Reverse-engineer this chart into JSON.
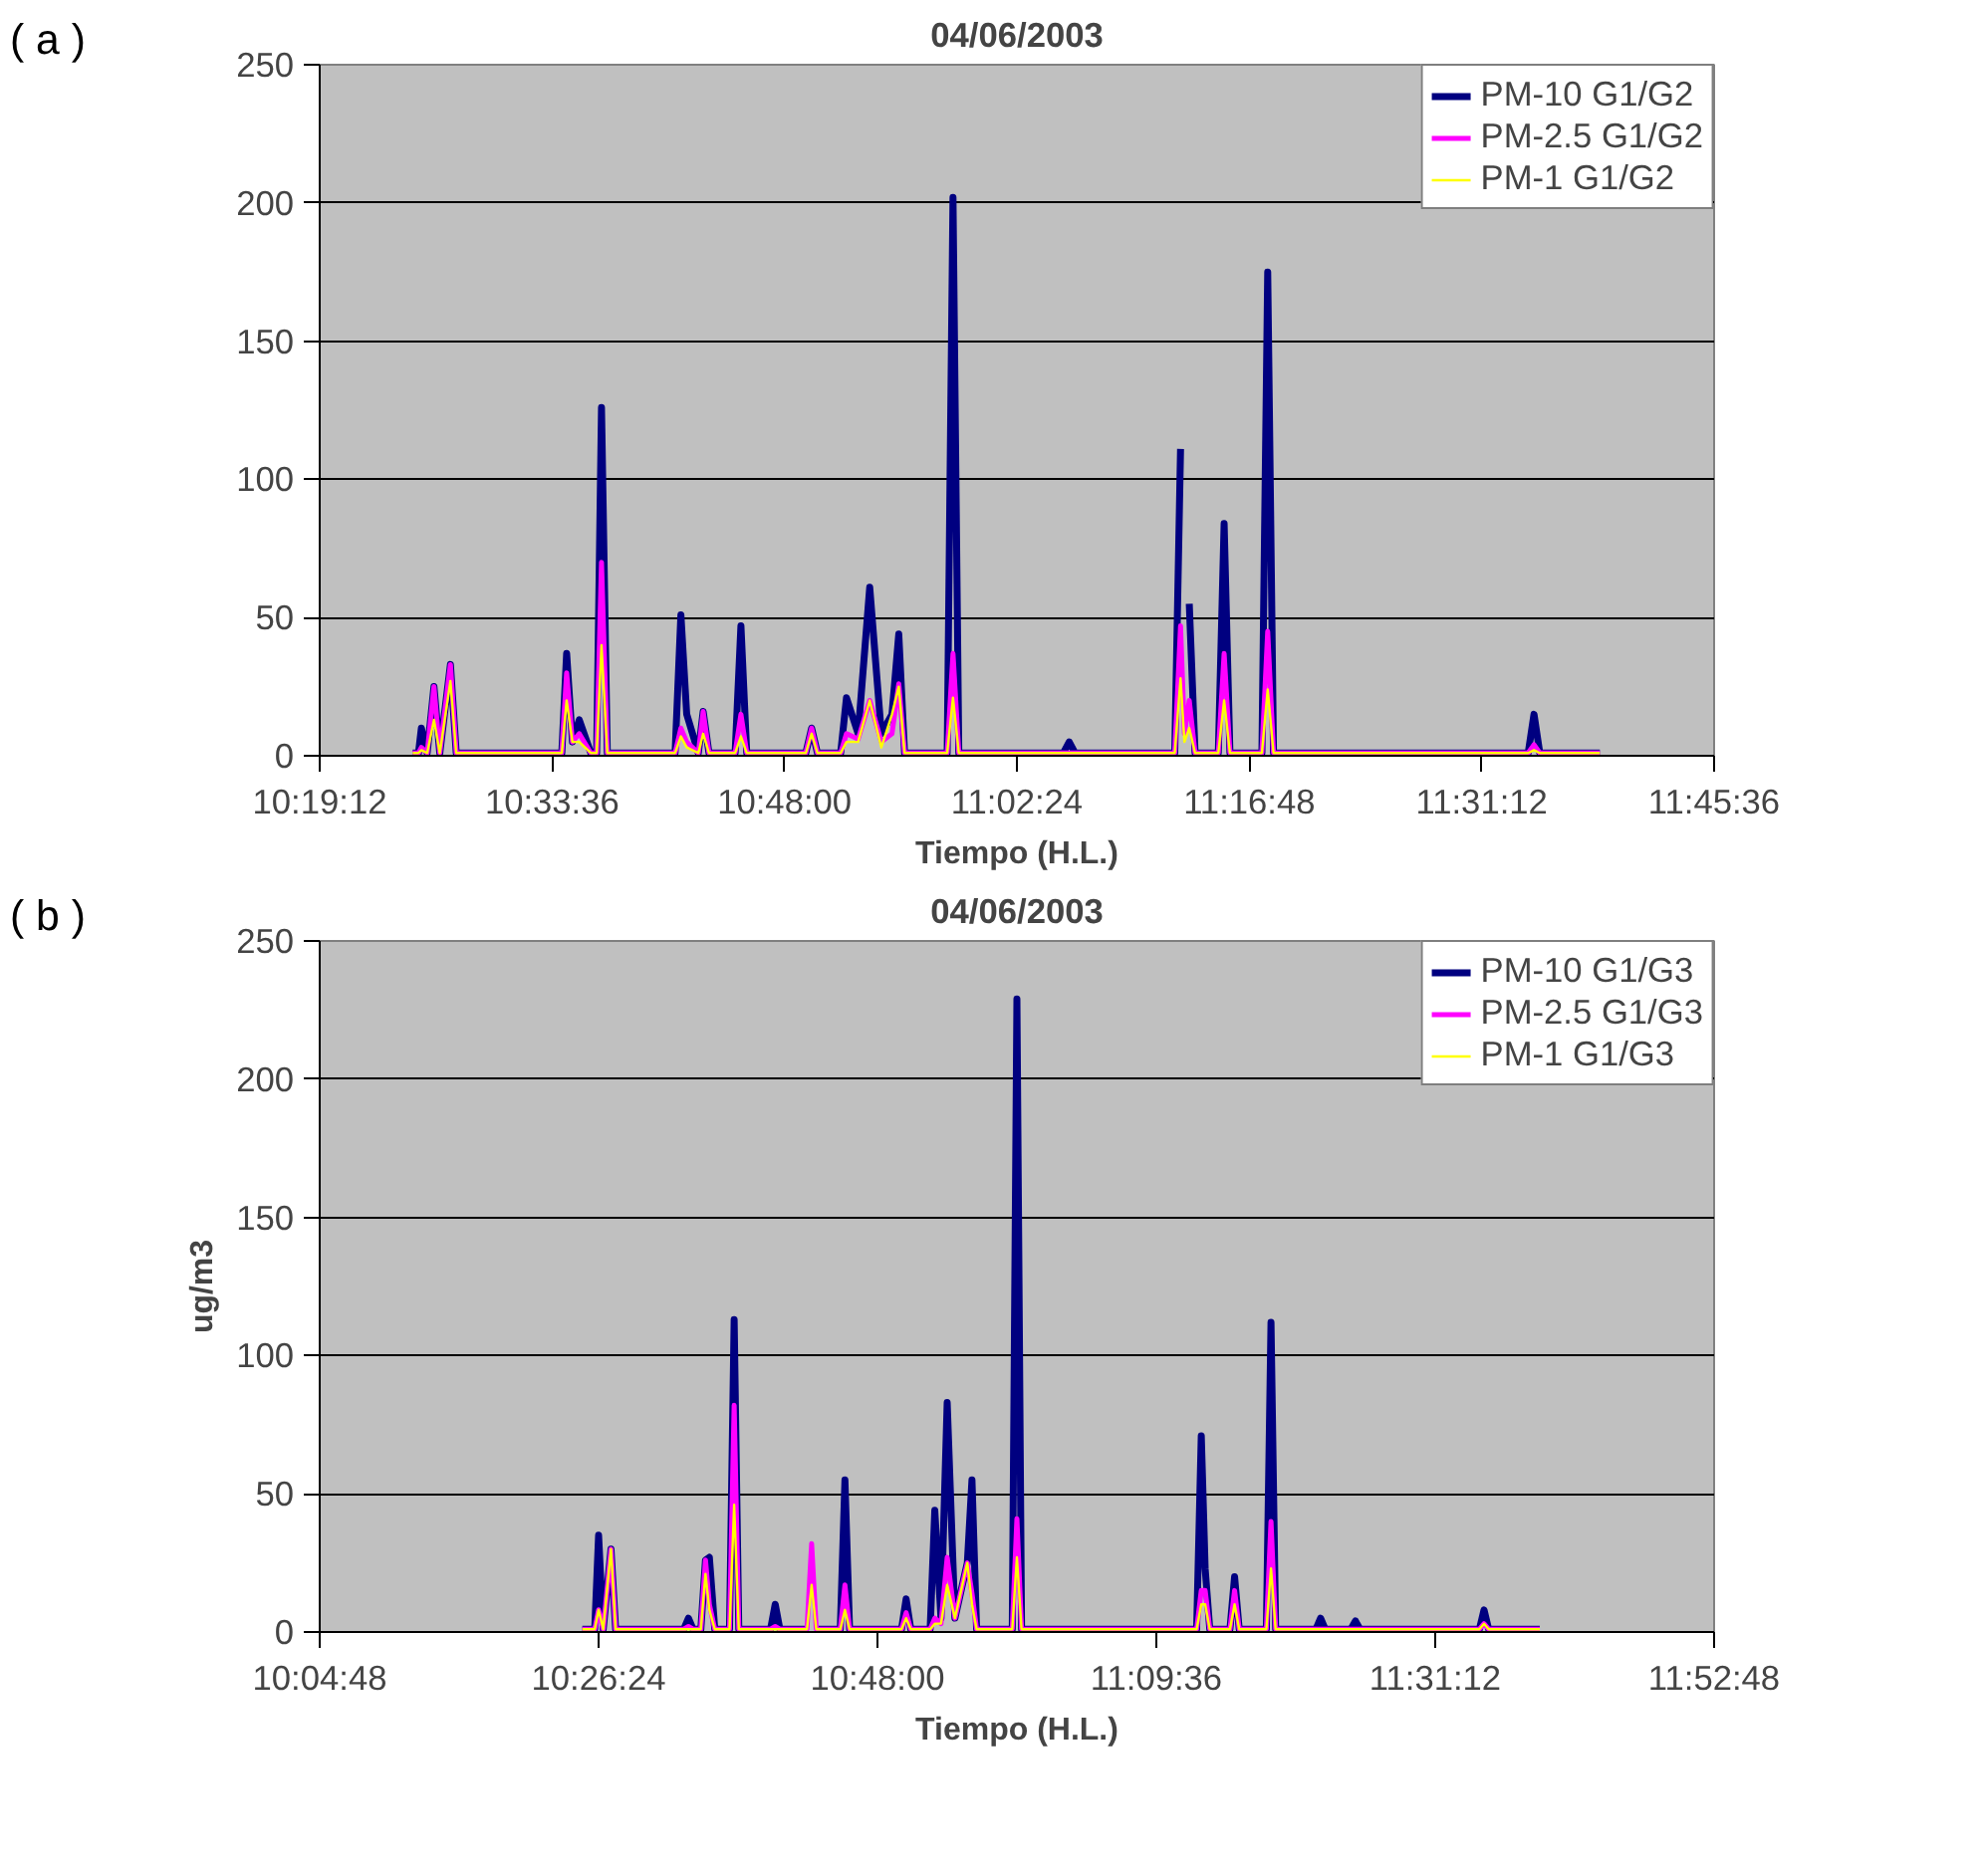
{
  "chart_data": [
    {
      "type": "line",
      "title": "04/06/2003",
      "xlabel": "Tiempo (H.L.)",
      "annotations": [
        "( a )"
      ],
      "grid": "y",
      "legend": "top right",
      "xlim": [
        10.32,
        11.76
      ],
      "ylim": [
        0,
        250
      ],
      "xticks": [
        {
          "value": 10.32,
          "label": "10:19:12"
        },
        {
          "value": 10.56,
          "label": "10:33:36"
        },
        {
          "value": 10.8,
          "label": "10:48:00"
        },
        {
          "value": 11.04,
          "label": "11:02:24"
        },
        {
          "value": 11.28,
          "label": "11:16:48"
        },
        {
          "value": 11.52,
          "label": "11:31:12"
        },
        {
          "value": 11.76,
          "label": "11:45:36"
        }
      ],
      "yticks": [
        0,
        50,
        100,
        150,
        200,
        250
      ],
      "x": [
        10.416,
        10.422,
        10.425,
        10.431,
        10.438,
        10.444,
        10.455,
        10.461,
        10.57,
        10.575,
        10.581,
        10.588,
        10.6,
        10.606,
        10.611,
        10.617,
        10.687,
        10.693,
        10.699,
        10.711,
        10.716,
        10.722,
        10.749,
        10.755,
        10.761,
        10.822,
        10.828,
        10.834,
        10.858,
        10.864,
        10.876,
        10.888,
        10.9,
        10.911,
        10.918,
        10.924,
        10.968,
        10.974,
        10.98,
        11.088,
        11.094,
        11.1,
        11.203,
        11.209,
        11.213,
        11.218,
        11.224,
        11.248,
        11.254,
        11.26,
        11.293,
        11.299,
        11.305,
        11.568,
        11.574,
        11.58,
        11.642
      ],
      "series": [
        {
          "name": "PM-10 G1/G2",
          "color": "#000080",
          "values": [
            1,
            1,
            10,
            1,
            25,
            1,
            33,
            1,
            1,
            37,
            5,
            13,
            1,
            1,
            126,
            1,
            1,
            51,
            15,
            1,
            16,
            1,
            1,
            47,
            1,
            1,
            10,
            1,
            1,
            21,
            8,
            61,
            8,
            15,
            44,
            1,
            1,
            202,
            1,
            1,
            5,
            1,
            1,
            111,
            null,
            55,
            1,
            1,
            84,
            1,
            1,
            175,
            1,
            1,
            15,
            1,
            1
          ]
        },
        {
          "name": "PM-2.5 G1/G2",
          "color": "#ff00ff",
          "values": [
            1,
            1,
            3,
            1,
            25,
            1,
            33,
            1,
            1,
            30,
            5,
            8,
            1,
            1,
            70,
            1,
            1,
            10,
            5,
            1,
            16,
            1,
            1,
            15,
            1,
            1,
            10,
            1,
            1,
            8,
            6,
            20,
            5,
            8,
            26,
            1,
            1,
            37,
            1,
            1,
            1,
            1,
            1,
            47,
            8,
            20,
            1,
            1,
            37,
            1,
            1,
            45,
            1,
            1,
            4,
            1,
            1
          ]
        },
        {
          "name": "PM-1 G1/G2",
          "color": "#ffff00",
          "values": [
            1,
            1,
            2,
            1,
            13,
            1,
            27,
            1,
            1,
            20,
            5,
            5,
            1,
            1,
            40,
            1,
            1,
            7,
            3,
            1,
            8,
            1,
            1,
            7,
            1,
            1,
            8,
            1,
            1,
            5,
            5,
            20,
            3,
            15,
            25,
            1,
            1,
            21,
            1,
            1,
            1,
            1,
            1,
            28,
            5,
            10,
            1,
            1,
            20,
            1,
            1,
            24,
            1,
            1,
            2,
            1,
            1
          ]
        }
      ]
    },
    {
      "type": "line",
      "title": "04/06/2003",
      "xlabel": "Tiempo (H.L.)",
      "ylabel": "ug/m3",
      "annotations": [
        "( b )"
      ],
      "grid": "y",
      "legend": "top right",
      "xlim": [
        10.08,
        11.88
      ],
      "ylim": [
        0,
        250
      ],
      "xticks": [
        {
          "value": 10.08,
          "label": "10:04:48"
        },
        {
          "value": 10.44,
          "label": "10:26:24"
        },
        {
          "value": 10.8,
          "label": "10:48:00"
        },
        {
          "value": 11.16,
          "label": "11:09:36"
        },
        {
          "value": 11.52,
          "label": "11:31:12"
        },
        {
          "value": 11.88,
          "label": "11:52:48"
        }
      ],
      "yticks": [
        0,
        50,
        100,
        150,
        200,
        250
      ],
      "x": [
        10.419,
        10.435,
        10.44,
        10.446,
        10.456,
        10.462,
        10.55,
        10.556,
        10.562,
        10.572,
        10.578,
        10.583,
        10.59,
        10.609,
        10.615,
        10.621,
        10.662,
        10.668,
        10.674,
        10.709,
        10.715,
        10.721,
        10.752,
        10.758,
        10.764,
        10.831,
        10.837,
        10.843,
        10.868,
        10.874,
        10.882,
        10.89,
        10.9,
        10.916,
        10.922,
        10.928,
        10.974,
        10.98,
        10.986,
        11.212,
        11.218,
        11.223,
        11.229,
        11.255,
        11.261,
        11.267,
        11.302,
        11.308,
        11.314,
        11.366,
        11.372,
        11.378,
        11.411,
        11.417,
        11.423,
        11.577,
        11.583,
        11.589,
        11.655
      ],
      "series": [
        {
          "name": "PM-10 G1/G3",
          "color": "#000080",
          "values": [
            1,
            1,
            35,
            1,
            30,
            1,
            1,
            5,
            1,
            1,
            26,
            27,
            1,
            1,
            113,
            1,
            1,
            10,
            1,
            1,
            null,
            1,
            1,
            55,
            1,
            1,
            12,
            1,
            1,
            44,
            5,
            83,
            5,
            25,
            55,
            1,
            1,
            229,
            1,
            1,
            71,
            23,
            1,
            1,
            20,
            1,
            1,
            112,
            1,
            1,
            5,
            1,
            1,
            4,
            1,
            1,
            8,
            1,
            1
          ]
        },
        {
          "name": "PM-2.5 G1/G3",
          "color": "#ff00ff",
          "values": [
            1,
            1,
            8,
            1,
            30,
            1,
            1,
            2,
            1,
            1,
            26,
            10,
            1,
            1,
            82,
            1,
            1,
            2,
            1,
            1,
            32,
            1,
            1,
            17,
            1,
            1,
            7,
            1,
            1,
            5,
            3,
            27,
            5,
            25,
            14,
            1,
            1,
            41,
            1,
            1,
            15,
            15,
            1,
            1,
            15,
            1,
            1,
            40,
            1,
            1,
            1,
            1,
            1,
            1,
            1,
            1,
            3,
            1,
            1
          ]
        },
        {
          "name": "PM-1 G1/G3",
          "color": "#ffff00",
          "values": [
            1,
            1,
            8,
            1,
            30,
            1,
            1,
            1,
            1,
            1,
            21,
            8,
            1,
            1,
            46,
            1,
            1,
            1,
            1,
            1,
            17,
            1,
            1,
            8,
            1,
            1,
            5,
            1,
            1,
            3,
            3,
            17,
            5,
            25,
            10,
            1,
            1,
            27,
            1,
            1,
            10,
            10,
            1,
            1,
            10,
            1,
            1,
            23,
            1,
            1,
            1,
            1,
            1,
            1,
            1,
            1,
            3,
            1,
            1
          ]
        }
      ]
    }
  ]
}
